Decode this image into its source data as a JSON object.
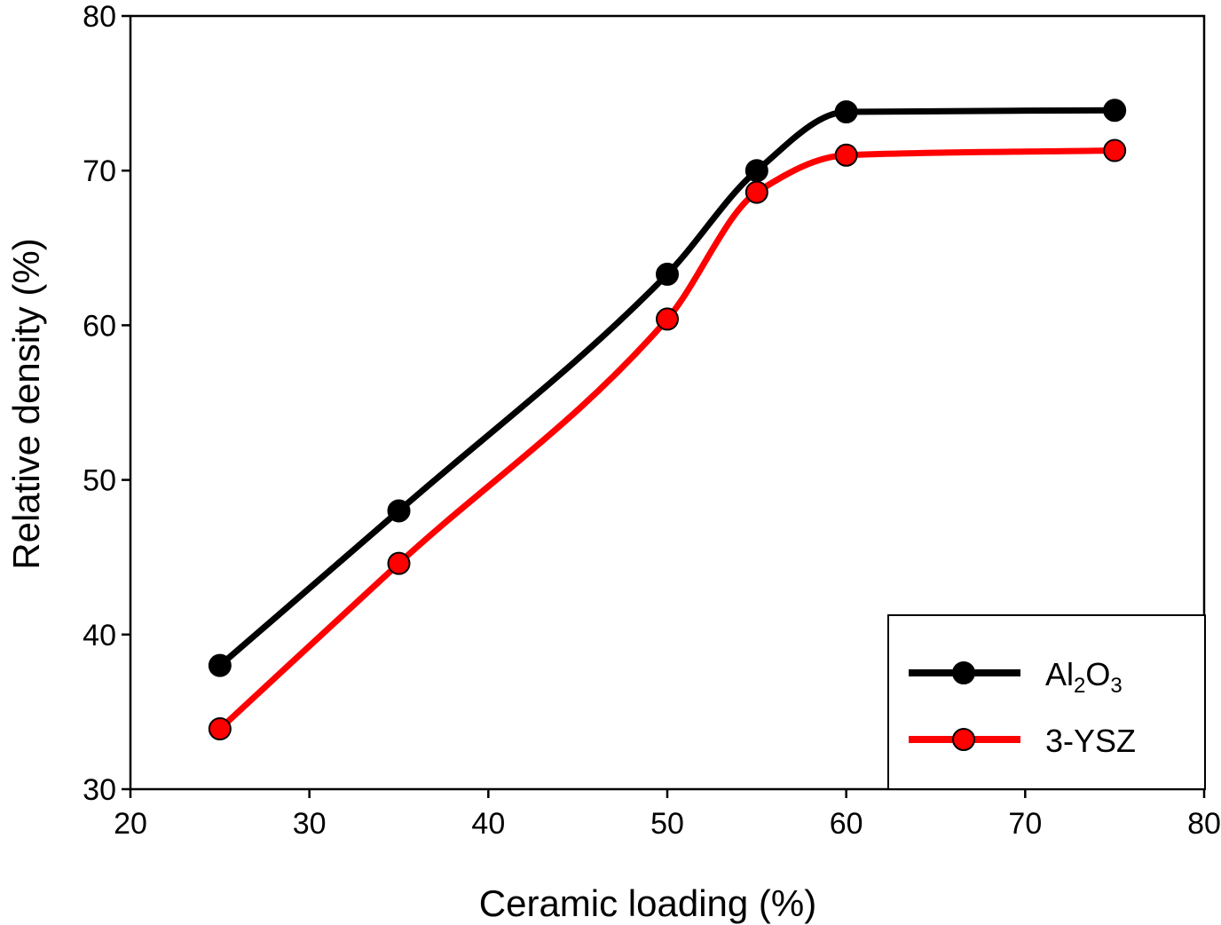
{
  "chart_data": {
    "type": "line",
    "title": "",
    "xlabel": "Ceramic loading (%)",
    "ylabel": "Relative density (%)",
    "xlim": [
      20,
      80
    ],
    "ylim": [
      30,
      80
    ],
    "xticks": [
      20,
      30,
      40,
      50,
      60,
      70,
      80
    ],
    "yticks": [
      30,
      40,
      50,
      60,
      70,
      80
    ],
    "grid": false,
    "legend_position": "bottom-right",
    "series": [
      {
        "name": "Al2O3",
        "legend_main": "Al",
        "legend_sub1": "2",
        "legend_mid": "O",
        "legend_sub2": "3",
        "color": "#000000",
        "marker_color": "#000000",
        "x": [
          25,
          35,
          50,
          55,
          60,
          75
        ],
        "values": [
          38.0,
          48.0,
          63.3,
          70.0,
          73.8,
          73.9
        ]
      },
      {
        "name": "3-YSZ",
        "legend_main": "3-YSZ",
        "color": "#ff0000",
        "marker_color": "#ff0000",
        "x": [
          25,
          35,
          50,
          55,
          60,
          75
        ],
        "values": [
          33.9,
          44.6,
          60.4,
          68.6,
          71.0,
          71.3
        ]
      }
    ]
  }
}
